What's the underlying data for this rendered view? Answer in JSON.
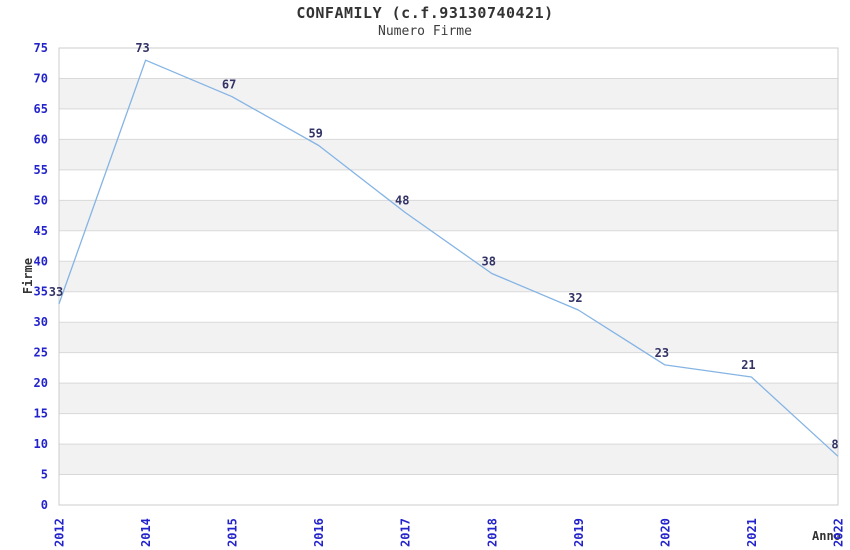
{
  "header": {
    "title": "CONFAMILY (c.f.93130740421)",
    "subtitle": "Numero Firme"
  },
  "chart_data": {
    "type": "line",
    "title": "CONFAMILY (c.f.93130740421)",
    "subtitle": "Numero Firme",
    "xlabel": "Anno",
    "ylabel": "Firme",
    "categories": [
      "2012",
      "2014",
      "2015",
      "2016",
      "2017",
      "2018",
      "2019",
      "2020",
      "2021",
      "2022"
    ],
    "values": [
      33,
      73,
      67,
      59,
      48,
      38,
      32,
      23,
      21,
      8
    ],
    "ylim": [
      0,
      75
    ],
    "ytick_step": 5,
    "grid": "horizontal-bands",
    "legend": "none",
    "colors": {
      "line": "#85b4e4",
      "tick_label": "#2323cc",
      "data_label": "#333366",
      "band_gray": "#f2f2f2",
      "band_white": "#ffffff",
      "gridline": "#d9d9d9",
      "border": "#cccccc",
      "title": "#333333"
    }
  }
}
